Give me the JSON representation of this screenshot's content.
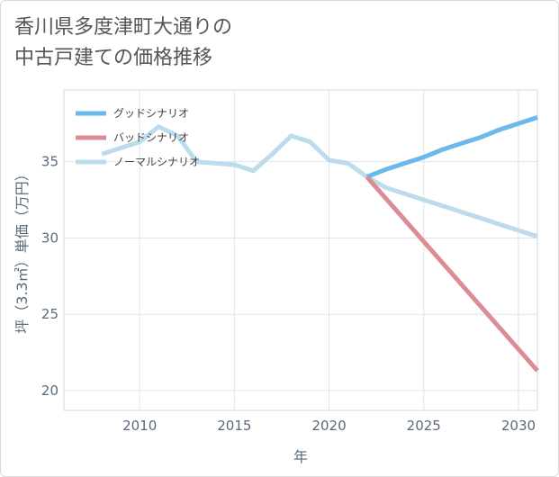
{
  "title": {
    "line1": "香川県多度津町大通りの",
    "line2": "中古戸建ての価格推移"
  },
  "chart_data": {
    "type": "line",
    "xlabel": "年",
    "ylabel": "坪（3.3㎡）単価（万円）",
    "xlim": [
      2006,
      2031
    ],
    "ylim": [
      18.7,
      39.7
    ],
    "xticks": [
      2010,
      2015,
      2020,
      2025,
      2030
    ],
    "yticks": [
      20,
      25,
      30,
      35
    ],
    "grid": true,
    "legend_position": "top-left",
    "series": [
      {
        "name": "グッドシナリオ",
        "color": "#6cb8ec",
        "x": [
          2022,
          2023,
          2024,
          2025,
          2026,
          2027,
          2028,
          2029,
          2030,
          2031
        ],
        "y": [
          34.0,
          34.5,
          34.9,
          35.3,
          35.8,
          36.2,
          36.6,
          37.1,
          37.5,
          37.9
        ]
      },
      {
        "name": "バッドシナリオ",
        "color": "#dc8c95",
        "x": [
          2022,
          2031
        ],
        "y": [
          34.0,
          21.3
        ]
      },
      {
        "name": "ノーマルシナリオ",
        "color": "#bcdcec",
        "x": [
          2008,
          2009,
          2010,
          2011,
          2012,
          2013,
          2014,
          2015,
          2016,
          2017,
          2018,
          2019,
          2020,
          2021,
          2022,
          2023,
          2024,
          2025,
          2026,
          2027,
          2028,
          2029,
          2030,
          2031
        ],
        "y": [
          35.5,
          35.9,
          36.3,
          37.3,
          36.7,
          35.0,
          34.9,
          34.8,
          34.4,
          35.5,
          36.7,
          36.3,
          35.1,
          34.9,
          34.0,
          33.3,
          32.9,
          32.5,
          32.1,
          31.7,
          31.3,
          30.9,
          30.5,
          30.1
        ]
      }
    ]
  }
}
